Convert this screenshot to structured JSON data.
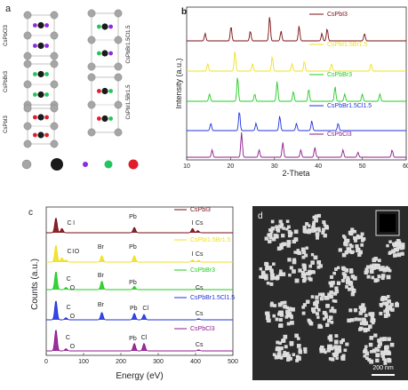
{
  "figure": {
    "panel_a": {
      "letter": "a",
      "left_labels": [
        "CsPbCl3",
        "CsPbBr3",
        "CsPbI3"
      ],
      "right_labels": [
        "CsPbBr1.5Cl1.5",
        "CsPbI1.5Br1.5"
      ],
      "atom_colors": {
        "cs": "#a6a6a6",
        "pb": "#1a1a1a",
        "halide_purple": "#8a2be2",
        "halide_green": "#22c55e",
        "halide_red": "#e11d2a"
      }
    },
    "panel_b": {
      "letter": "b",
      "ylabel": "Intensity (a.u.)",
      "xlabel": "2-Theta",
      "legend": [
        "CsPbI3",
        "CsPbI1.5Br1.5",
        "CsPbBr3",
        "CsPbBr1.5Cl1.5",
        "CsPbCl3"
      ]
    },
    "panel_c": {
      "letter": "c",
      "ylabel": "Counts (a.u.)",
      "xlabel": "Energy (eV)",
      "legend": [
        "CsPbI3",
        "CsPbI1.5Br1.5",
        "CsPbBr3",
        "CsPbBr1.5Cl1.5",
        "CsPbCl3"
      ],
      "element_labels": [
        "C",
        "I",
        "Pb",
        "I",
        "Cs",
        "C",
        "I",
        "O",
        "Br",
        "Pb",
        "I",
        "Cs",
        "C",
        "O",
        "Br",
        "Pb",
        "Cs",
        "C",
        "O",
        "Br",
        "Pb",
        "Cl",
        "Cs",
        "C",
        "O",
        "Pb",
        "Cl",
        "Cs"
      ]
    },
    "panel_d": {
      "letter": "d",
      "scale_bar": "200 nm"
    }
  },
  "chart_data": [
    {
      "type": "line",
      "panel": "b",
      "xlabel": "2-Theta",
      "ylabel": "Intensity (a.u.)",
      "xlim": [
        10,
        60
      ],
      "x_ticks": [
        10,
        20,
        30,
        40,
        50,
        60
      ],
      "series": [
        {
          "name": "CsPbI3",
          "color": "#7a0d12",
          "peaks": [
            [
              14.2,
              0.3
            ],
            [
              20.1,
              0.6
            ],
            [
              24.5,
              0.4
            ],
            [
              28.9,
              1.0
            ],
            [
              31.5,
              0.4
            ],
            [
              35.6,
              0.6
            ],
            [
              40.8,
              0.3
            ],
            [
              42.0,
              0.5
            ],
            [
              50.5,
              0.3
            ]
          ]
        },
        {
          "name": "CsPbI1.5Br1.5",
          "color": "#f0e020",
          "peaks": [
            [
              14.8,
              0.3
            ],
            [
              21.0,
              0.8
            ],
            [
              25.0,
              0.3
            ],
            [
              29.5,
              0.6
            ],
            [
              34.0,
              0.3
            ],
            [
              36.8,
              0.4
            ],
            [
              43.0,
              0.3
            ],
            [
              52.0,
              0.3
            ]
          ]
        },
        {
          "name": "CsPbBr3",
          "color": "#22cc22",
          "peaks": [
            [
              15.2,
              0.3
            ],
            [
              21.6,
              1.0
            ],
            [
              25.5,
              0.3
            ],
            [
              30.6,
              0.8
            ],
            [
              34.3,
              0.4
            ],
            [
              37.8,
              0.5
            ],
            [
              43.8,
              0.6
            ],
            [
              46.0,
              0.3
            ],
            [
              50.0,
              0.3
            ],
            [
              54.0,
              0.3
            ]
          ]
        },
        {
          "name": "CsPbBr1.5Cl1.5",
          "color": "#2233dd",
          "peaks": [
            [
              15.5,
              0.3
            ],
            [
              22.0,
              0.8
            ],
            [
              25.8,
              0.3
            ],
            [
              31.2,
              0.6
            ],
            [
              35.0,
              0.3
            ],
            [
              38.5,
              0.4
            ],
            [
              44.5,
              0.3
            ]
          ]
        },
        {
          "name": "CsPbCl3",
          "color": "#8e1a8e",
          "peaks": [
            [
              15.8,
              0.3
            ],
            [
              22.5,
              1.0
            ],
            [
              26.5,
              0.3
            ],
            [
              31.9,
              0.6
            ],
            [
              36.0,
              0.3
            ],
            [
              39.2,
              0.4
            ],
            [
              45.6,
              0.3
            ],
            [
              49.0,
              0.2
            ],
            [
              56.8,
              0.3
            ]
          ]
        }
      ]
    },
    {
      "type": "line",
      "panel": "c",
      "xlabel": "Energy (eV)",
      "ylabel": "Counts (a.u.)",
      "xlim": [
        0,
        500
      ],
      "x_ticks": [
        0,
        100,
        200,
        300,
        400,
        500
      ],
      "series": [
        {
          "name": "CsPbI3",
          "color": "#7a0d12",
          "peaks": [
            [
              26,
              0.7
            ],
            [
              42,
              0.2
            ],
            [
              236,
              0.25
            ],
            [
              392,
              0.2
            ],
            [
              406,
              0.1
            ]
          ]
        },
        {
          "name": "CsPbI1.5Br1.5",
          "color": "#f0e020",
          "peaks": [
            [
              26,
              0.8
            ],
            [
              42,
              0.2
            ],
            [
              53,
              0.1
            ],
            [
              149,
              0.3
            ],
            [
              236,
              0.3
            ],
            [
              392,
              0.1
            ],
            [
              408,
              0.08
            ]
          ]
        },
        {
          "name": "CsPbBr3",
          "color": "#22cc22",
          "peaks": [
            [
              26,
              0.85
            ],
            [
              53,
              0.1
            ],
            [
              149,
              0.4
            ],
            [
              236,
              0.15
            ],
            [
              408,
              0.05
            ]
          ]
        },
        {
          "name": "CsPbBr1.5Cl1.5",
          "color": "#2233dd",
          "peaks": [
            [
              26,
              0.9
            ],
            [
              53,
              0.1
            ],
            [
              149,
              0.35
            ],
            [
              236,
              0.3
            ],
            [
              262,
              0.25
            ],
            [
              408,
              0.05
            ]
          ]
        },
        {
          "name": "CsPbCl3",
          "color": "#8e1a8e",
          "peaks": [
            [
              26,
              1.0
            ],
            [
              53,
              0.1
            ],
            [
              236,
              0.35
            ],
            [
              262,
              0.35
            ],
            [
              408,
              0.05
            ]
          ]
        }
      ]
    }
  ]
}
